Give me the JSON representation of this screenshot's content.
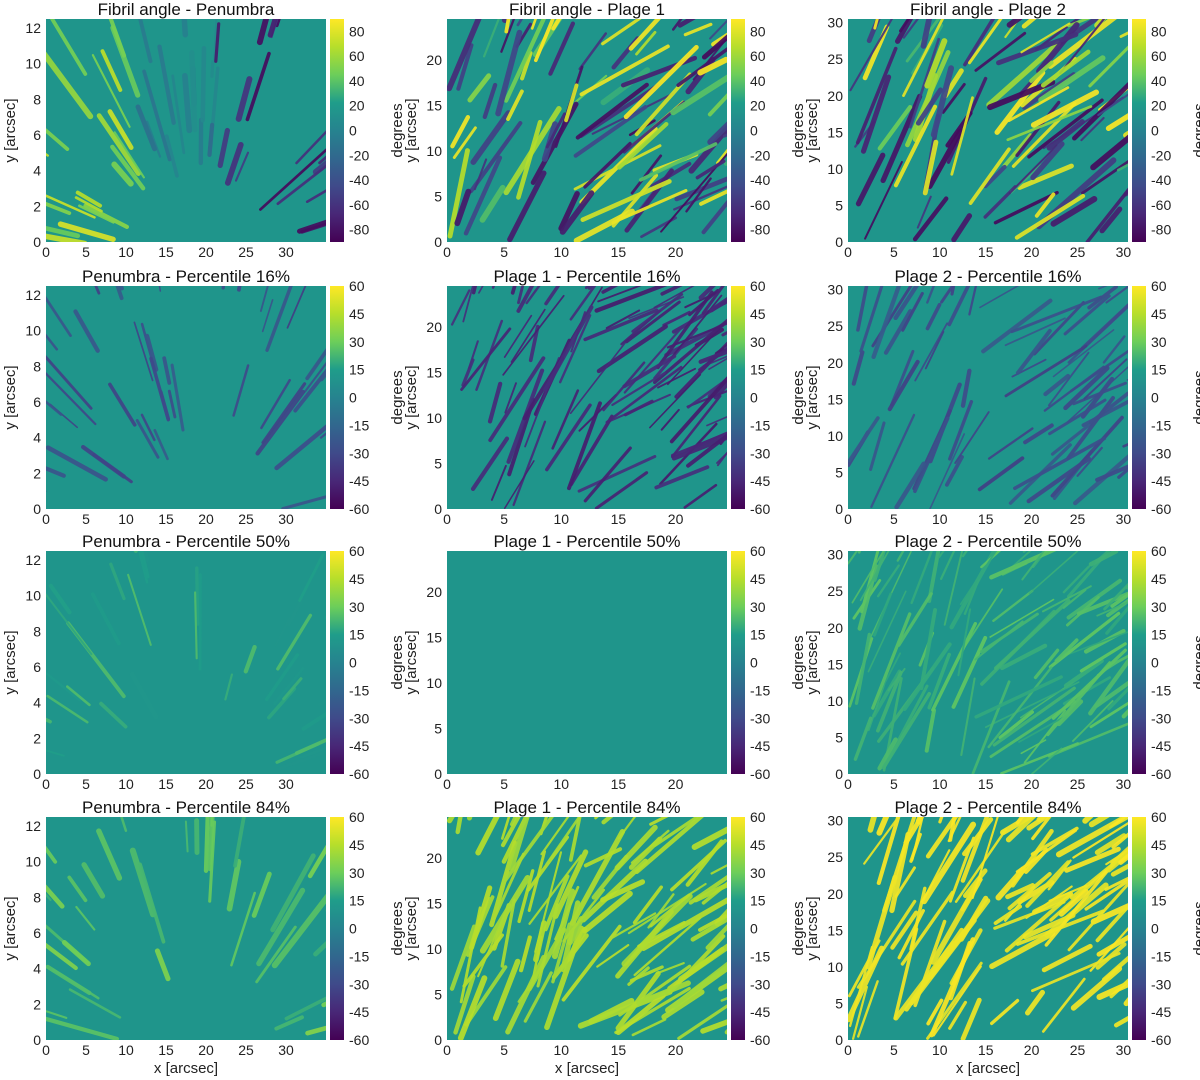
{
  "chart_data": [
    {
      "type": "heatmap",
      "title": "Fibril angle - Penumbra",
      "xlabel": "",
      "ylabel": "y [arcsec]",
      "xlim": [
        0,
        35
      ],
      "ylim": [
        0,
        12.5
      ],
      "xticks": [
        0,
        5,
        10,
        15,
        20,
        25,
        30
      ],
      "yticks": [
        0,
        2,
        4,
        6,
        8,
        10,
        12
      ],
      "colorbar": {
        "label": "degrees",
        "range": [
          -90,
          90
        ],
        "ticks": [
          80,
          60,
          40,
          20,
          0,
          -20,
          -40,
          -60,
          -80
        ],
        "colormap": "viridis"
      },
      "field": "Penumbra",
      "mode": "angle"
    },
    {
      "type": "heatmap",
      "title": "Fibril angle - Plage 1",
      "xlabel": "",
      "ylabel": "y [arcsec]",
      "xlim": [
        0,
        24.5
      ],
      "ylim": [
        0,
        24.5
      ],
      "xticks": [
        0,
        5,
        10,
        15,
        20
      ],
      "yticks": [
        0,
        5,
        10,
        15,
        20
      ],
      "colorbar": {
        "label": "degrees",
        "range": [
          -90,
          90
        ],
        "ticks": [
          80,
          60,
          40,
          20,
          0,
          -20,
          -40,
          -60,
          -80
        ],
        "colormap": "viridis"
      },
      "field": "Plage 1",
      "mode": "angle"
    },
    {
      "type": "heatmap",
      "title": "Fibril angle - Plage 2",
      "xlabel": "",
      "ylabel": "y [arcsec]",
      "xlim": [
        0,
        30.5
      ],
      "ylim": [
        0,
        30.5
      ],
      "xticks": [
        0,
        5,
        10,
        15,
        20,
        25,
        30
      ],
      "yticks": [
        0,
        5,
        10,
        15,
        20,
        25,
        30
      ],
      "colorbar": {
        "label": "degrees",
        "range": [
          -90,
          90
        ],
        "ticks": [
          80,
          60,
          40,
          20,
          0,
          -20,
          -40,
          -60,
          -80
        ],
        "colormap": "viridis"
      },
      "field": "Plage 2",
      "mode": "angle"
    },
    {
      "type": "heatmap",
      "title": "Penumbra - Percentile 16%",
      "xlabel": "",
      "ylabel": "y [arcsec]",
      "xlim": [
        0,
        35
      ],
      "ylim": [
        0,
        12.5
      ],
      "xticks": [
        0,
        5,
        10,
        15,
        20,
        25,
        30
      ],
      "yticks": [
        0,
        2,
        4,
        6,
        8,
        10,
        12
      ],
      "colorbar": {
        "label": "degrees",
        "range": [
          -60,
          60
        ],
        "ticks": [
          60,
          45,
          30,
          15,
          0,
          -15,
          -30,
          -45,
          -60
        ],
        "colormap": "viridis"
      },
      "field": "Penumbra",
      "mode": "p16"
    },
    {
      "type": "heatmap",
      "title": "Plage 1 - Percentile 16%",
      "xlabel": "",
      "ylabel": "y [arcsec]",
      "xlim": [
        0,
        24.5
      ],
      "ylim": [
        0,
        24.5
      ],
      "xticks": [
        0,
        5,
        10,
        15,
        20
      ],
      "yticks": [
        0,
        5,
        10,
        15,
        20
      ],
      "colorbar": {
        "label": "degrees",
        "range": [
          -60,
          60
        ],
        "ticks": [
          60,
          45,
          30,
          15,
          0,
          -15,
          -30,
          -45,
          -60
        ],
        "colormap": "viridis"
      },
      "field": "Plage 1",
      "mode": "p16"
    },
    {
      "type": "heatmap",
      "title": "Plage 2 - Percentile 16%",
      "xlabel": "",
      "ylabel": "y [arcsec]",
      "xlim": [
        0,
        30.5
      ],
      "ylim": [
        0,
        30.5
      ],
      "xticks": [
        0,
        5,
        10,
        15,
        20,
        25,
        30
      ],
      "yticks": [
        0,
        5,
        10,
        15,
        20,
        25,
        30
      ],
      "colorbar": {
        "label": "degrees",
        "range": [
          -60,
          60
        ],
        "ticks": [
          60,
          45,
          30,
          15,
          0,
          -15,
          -30,
          -45,
          -60
        ],
        "colormap": "viridis"
      },
      "field": "Plage 2",
      "mode": "p16"
    },
    {
      "type": "heatmap",
      "title": "Penumbra - Percentile 50%",
      "xlabel": "",
      "ylabel": "y [arcsec]",
      "xlim": [
        0,
        35
      ],
      "ylim": [
        0,
        12.5
      ],
      "xticks": [
        0,
        5,
        10,
        15,
        20,
        25,
        30
      ],
      "yticks": [
        0,
        2,
        4,
        6,
        8,
        10,
        12
      ],
      "colorbar": {
        "label": "degrees",
        "range": [
          -60,
          60
        ],
        "ticks": [
          60,
          45,
          30,
          15,
          0,
          -15,
          -30,
          -45,
          -60
        ],
        "colormap": "viridis"
      },
      "field": "Penumbra",
      "mode": "p50"
    },
    {
      "type": "heatmap",
      "title": "Plage 1 - Percentile 50%",
      "xlabel": "",
      "ylabel": "y [arcsec]",
      "xlim": [
        0,
        24.5
      ],
      "ylim": [
        0,
        24.5
      ],
      "xticks": [
        0,
        5,
        10,
        15,
        20
      ],
      "yticks": [
        0,
        5,
        10,
        15,
        20
      ],
      "colorbar": {
        "label": "degrees",
        "range": [
          -60,
          60
        ],
        "ticks": [
          60,
          45,
          30,
          15,
          0,
          -15,
          -30,
          -45,
          -60
        ],
        "colormap": "viridis"
      },
      "field": "Plage 1",
      "mode": "p50"
    },
    {
      "type": "heatmap",
      "title": "Plage 2 - Percentile 50%",
      "xlabel": "",
      "ylabel": "y [arcsec]",
      "xlim": [
        0,
        30.5
      ],
      "ylim": [
        0,
        30.5
      ],
      "xticks": [
        0,
        5,
        10,
        15,
        20,
        25,
        30
      ],
      "yticks": [
        0,
        5,
        10,
        15,
        20,
        25,
        30
      ],
      "colorbar": {
        "label": "degrees",
        "range": [
          -60,
          60
        ],
        "ticks": [
          60,
          45,
          30,
          15,
          0,
          -15,
          -30,
          -45,
          -60
        ],
        "colormap": "viridis"
      },
      "field": "Plage 2",
      "mode": "p50"
    },
    {
      "type": "heatmap",
      "title": "Penumbra - Percentile 84%",
      "xlabel": "x [arcsec]",
      "ylabel": "y [arcsec]",
      "xlim": [
        0,
        35
      ],
      "ylim": [
        0,
        12.5
      ],
      "xticks": [
        0,
        5,
        10,
        15,
        20,
        25,
        30
      ],
      "yticks": [
        0,
        2,
        4,
        6,
        8,
        10,
        12
      ],
      "colorbar": {
        "label": "degrees",
        "range": [
          -60,
          60
        ],
        "ticks": [
          60,
          45,
          30,
          15,
          0,
          -15,
          -30,
          -45,
          -60
        ],
        "colormap": "viridis"
      },
      "field": "Penumbra",
      "mode": "p84"
    },
    {
      "type": "heatmap",
      "title": "Plage 1 - Percentile 84%",
      "xlabel": "x [arcsec]",
      "ylabel": "y [arcsec]",
      "xlim": [
        0,
        24.5
      ],
      "ylim": [
        0,
        24.5
      ],
      "xticks": [
        0,
        5,
        10,
        15,
        20
      ],
      "yticks": [
        0,
        5,
        10,
        15,
        20
      ],
      "colorbar": {
        "label": "degrees",
        "range": [
          -60,
          60
        ],
        "ticks": [
          60,
          45,
          30,
          15,
          0,
          -15,
          -30,
          -45,
          -60
        ],
        "colormap": "viridis"
      },
      "field": "Plage 1",
      "mode": "p84"
    },
    {
      "type": "heatmap",
      "title": "Plage 2 - Percentile 84%",
      "xlabel": "x [arcsec]",
      "ylabel": "y [arcsec]",
      "xlim": [
        0,
        30.5
      ],
      "ylim": [
        0,
        30.5
      ],
      "xticks": [
        0,
        5,
        10,
        15,
        20,
        25,
        30
      ],
      "yticks": [
        0,
        5,
        10,
        15,
        20,
        25,
        30
      ],
      "colorbar": {
        "label": "degrees",
        "range": [
          -60,
          60
        ],
        "ticks": [
          60,
          45,
          30,
          15,
          0,
          -15,
          -30,
          -45,
          -60
        ],
        "colormap": "viridis"
      },
      "field": "Plage 2",
      "mode": "p84"
    }
  ],
  "colors": {
    "background_field": "#1f958b",
    "viridis": [
      "#440154",
      "#482777",
      "#3f4a8a",
      "#31678e",
      "#26838f",
      "#1f9d8a",
      "#6cce5a",
      "#b6de2b",
      "#fee825"
    ]
  }
}
